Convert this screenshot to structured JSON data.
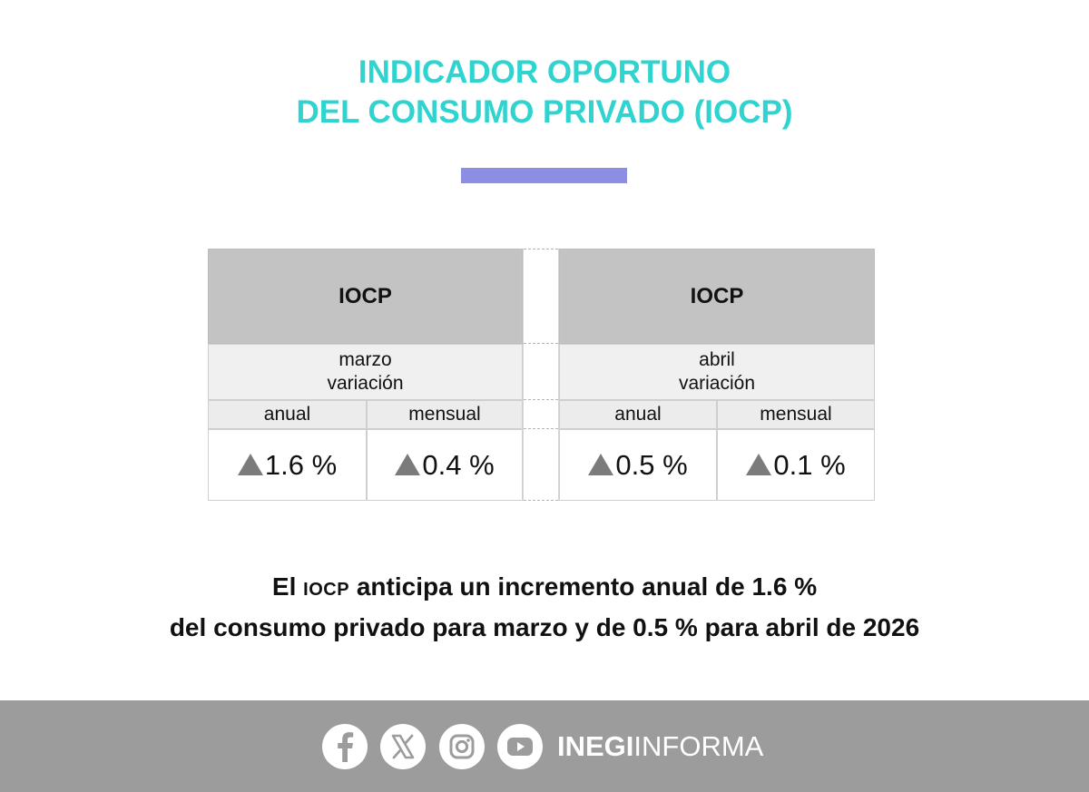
{
  "title": {
    "line1": "INDICADOR OPORTUNO",
    "line2": "DEL CONSUMO PRIVADO (IOCP)"
  },
  "accent_color": "#8c8ee3",
  "title_color": "#2fd3cf",
  "table": {
    "left": {
      "header": "IOCP",
      "month": "marzo",
      "variation_label": "variación",
      "columns": [
        "anual",
        "mensual"
      ],
      "values": [
        "1.6 %",
        "0.4 %"
      ],
      "direction": [
        "up-triangle-icon",
        "up-triangle-icon"
      ]
    },
    "right": {
      "header": "IOCP",
      "month": "abril",
      "variation_label": "variación",
      "columns": [
        "anual",
        "mensual"
      ],
      "values": [
        "0.5 %",
        "0.1 %"
      ],
      "direction": [
        "up-triangle-icon",
        "up-triangle-icon"
      ]
    }
  },
  "summary": {
    "line1_prefix": "El",
    "line1_abbrev": "IOCP",
    "line1_rest": "anticipa un incremento anual de 1.6 %",
    "line2": "del consumo privado para marzo y de 0.5 % para abril de 2026"
  },
  "footer": {
    "social_icons": [
      "facebook-icon",
      "x-icon",
      "instagram-icon",
      "youtube-icon"
    ],
    "brand_bold": "INEGI",
    "brand_light": "INFORMA"
  }
}
